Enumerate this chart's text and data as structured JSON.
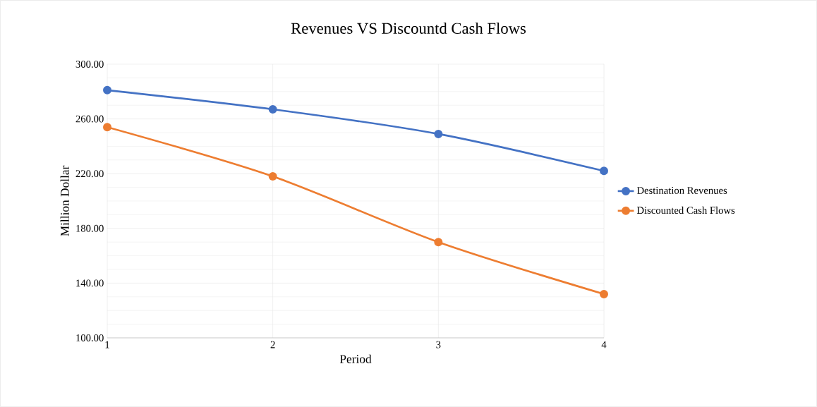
{
  "chart_data": {
    "type": "line",
    "title": "Revenues VS Discountd Cash Flows",
    "xlabel": "Period",
    "ylabel": "Million Dollar",
    "x": [
      1,
      2,
      3,
      4
    ],
    "series": [
      {
        "name": "Destination Revenues",
        "color": "#4472c4",
        "values": [
          281,
          267,
          249,
          222
        ]
      },
      {
        "name": "Discounted Cash Flows",
        "color": "#ed7d31",
        "values": [
          254,
          218,
          170,
          132
        ]
      }
    ],
    "xlim": [
      1,
      4
    ],
    "xticks": [
      1,
      2,
      3,
      4
    ],
    "ylim": [
      100,
      300
    ],
    "yticks": [
      {
        "value": 100,
        "label": "100.00"
      },
      {
        "value": 140,
        "label": "140.00"
      },
      {
        "value": 180,
        "label": "180.00"
      },
      {
        "value": 220,
        "label": "220.00"
      },
      {
        "value": 260,
        "label": "260.00"
      },
      {
        "value": 300,
        "label": "300.00"
      }
    ],
    "grid": true,
    "legend": "right",
    "marker": "circle",
    "line_style": "solid"
  }
}
